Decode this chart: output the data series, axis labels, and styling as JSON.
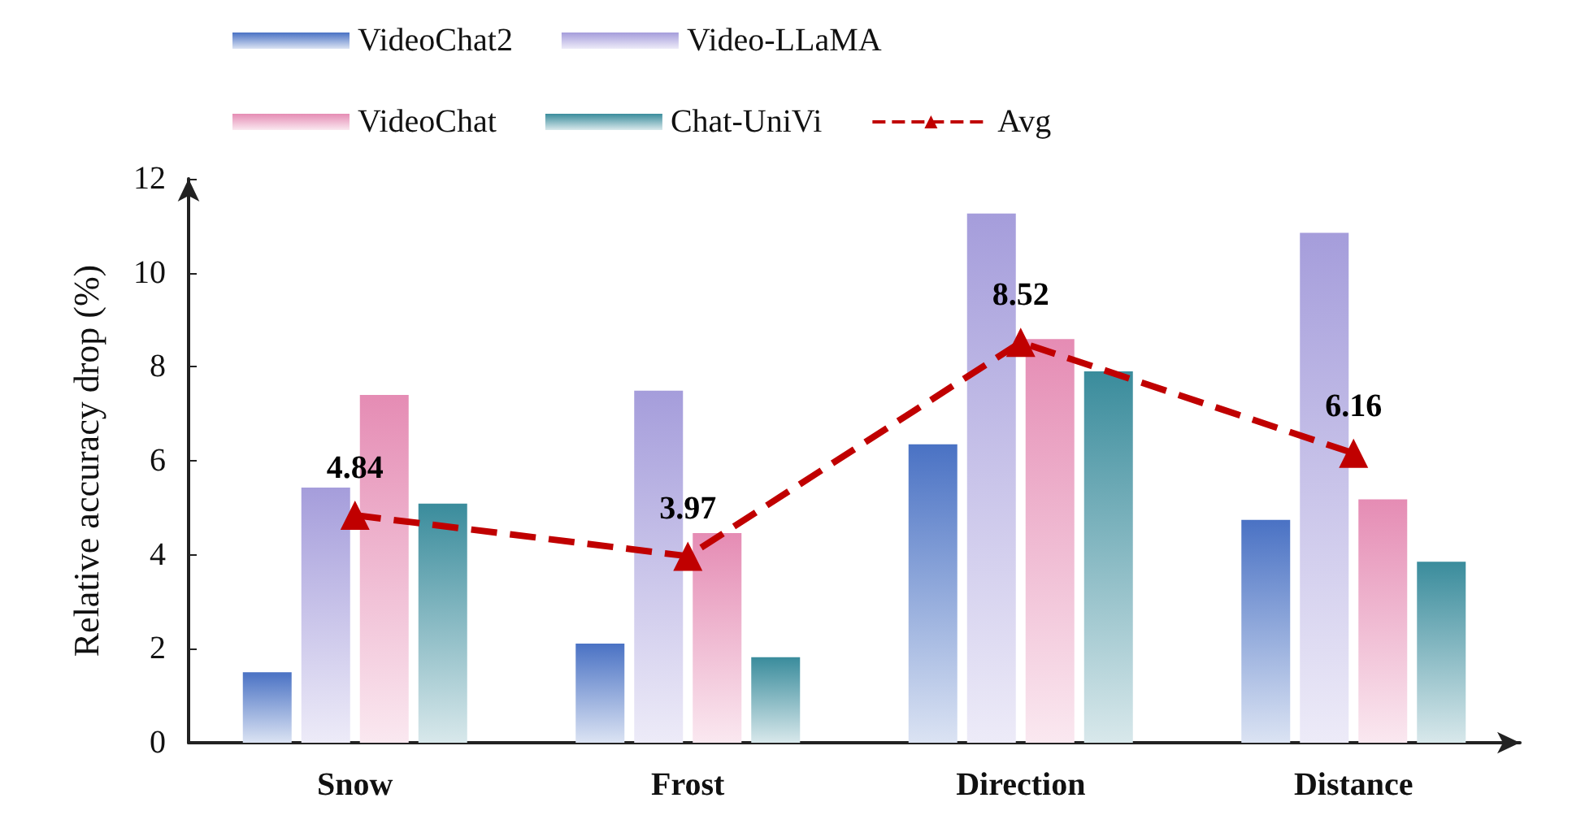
{
  "chart_data": {
    "type": "bar",
    "ylabel": "Relative accuracy drop (%)",
    "categories": [
      "Snow",
      "Frost",
      "Direction",
      "Distance"
    ],
    "series": [
      {
        "name": "VideoChat2",
        "color": "#4a72c4",
        "values": [
          1.5,
          2.11,
          6.35,
          4.74
        ]
      },
      {
        "name": "Video-LLaMA",
        "color": "#a59ddb",
        "values": [
          5.43,
          7.49,
          11.26,
          10.85
        ]
      },
      {
        "name": "VideoChat",
        "color": "#e58cb4",
        "values": [
          7.4,
          4.46,
          8.59,
          5.18
        ]
      },
      {
        "name": "Chat-UniVi",
        "color": "#3a8c9c",
        "values": [
          5.09,
          1.82,
          7.9,
          3.85
        ]
      },
      {
        "name": "Avg",
        "type": "line",
        "color": "#c00000",
        "values": [
          4.84,
          3.97,
          8.52,
          6.16
        ],
        "value_labels": [
          "4.84",
          "3.97",
          "8.52",
          "6.16"
        ],
        "marker": "triangle",
        "line_style": "dashed"
      }
    ],
    "ylim": [
      0,
      12
    ],
    "yticks": [
      0,
      2,
      4,
      6,
      8,
      10,
      12
    ],
    "grid": false,
    "legend": "top"
  }
}
